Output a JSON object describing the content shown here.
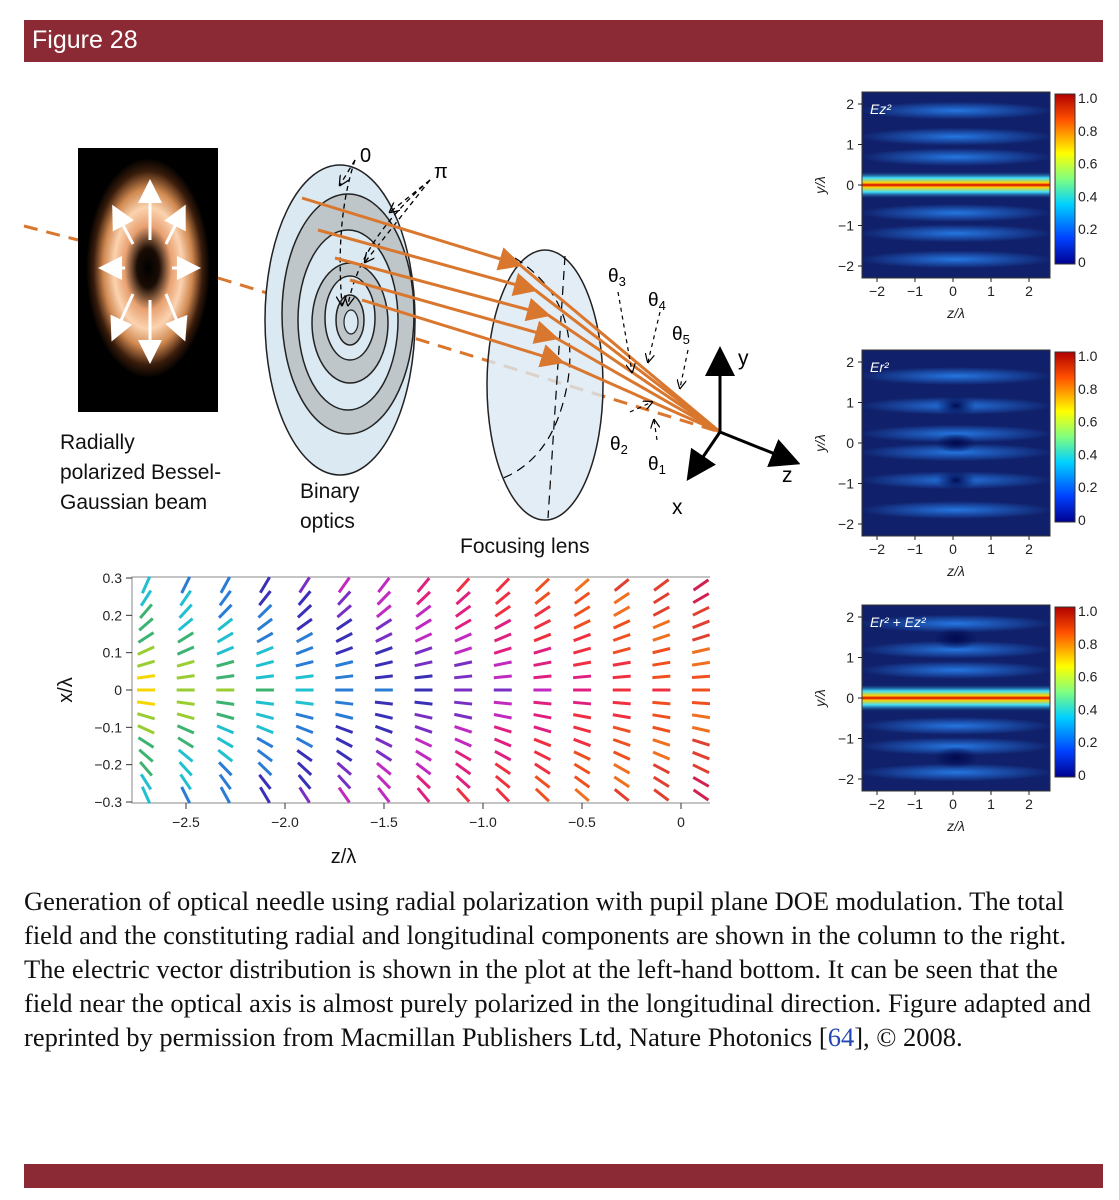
{
  "figure": {
    "title": "Figure 28"
  },
  "diagram": {
    "beam_label_line1": "Radially",
    "beam_label_line2": "polarized Bessel-",
    "beam_label_line3": "Gaussian beam",
    "optics_label_line1": "Binary",
    "optics_label_line2": "optics",
    "lens_label": "Focusing lens",
    "phase_zero": "0",
    "phase_pi": "π",
    "theta1": "θ1",
    "theta2": "θ2",
    "theta3": "θ3",
    "theta4": "θ4",
    "theta5": "θ5",
    "axis_x": "x",
    "axis_y": "y",
    "axis_z": "z"
  },
  "heatmaps": [
    {
      "label": "E_z^2",
      "xlabel": "z/λ",
      "ylabel": "y/λ",
      "xticks": [
        "−2",
        "−1",
        "0",
        "1",
        "2"
      ],
      "yticks": [
        "2",
        "1",
        "0",
        "−1",
        "−2"
      ],
      "cbar_ticks": [
        "1.0",
        "0.8",
        "0.6",
        "0.4",
        "0.2",
        "0"
      ]
    },
    {
      "label": "E_r^2",
      "xlabel": "z/λ",
      "ylabel": "y/λ",
      "xticks": [
        "−2",
        "−1",
        "0",
        "1",
        "2"
      ],
      "yticks": [
        "2",
        "1",
        "0",
        "−1",
        "−2"
      ],
      "cbar_ticks": [
        "1.0",
        "0.8",
        "0.6",
        "0.4",
        "0.2",
        "0"
      ]
    },
    {
      "label": "E_r^2 + E_z^2",
      "xlabel": "z/λ",
      "ylabel": "y/λ",
      "xticks": [
        "−2",
        "−1",
        "0",
        "1",
        "2"
      ],
      "yticks": [
        "2",
        "1",
        "0",
        "−1",
        "−2"
      ],
      "cbar_ticks": [
        "1.0",
        "0.8",
        "0.6",
        "0.4",
        "0.2",
        "0"
      ]
    }
  ],
  "chart_data": {
    "type": "scatter",
    "xlabel": "z/λ",
    "ylabel": "x/λ",
    "xlim": [
      -2.5,
      0
    ],
    "ylim": [
      -0.3,
      0.3
    ],
    "xticks": [
      "−2.5",
      "−2.0",
      "−1.5",
      "−1.0",
      "−0.5",
      "0"
    ],
    "yticks": [
      "0.3",
      "0.2",
      "0.1",
      "0",
      "−0.1",
      "−0.2",
      "−0.3"
    ],
    "grid": false
  },
  "caption": {
    "text": "Generation of optical needle using radial polarization with pupil plane DOE modulation. The total field and the constituting radial and longitudinal components are shown in the column to the right. The electric vector distribution is shown in the plot at the left-hand bottom. It can be seen that the field near the optical axis is almost purely polarized in the longitudinal direction. Figure adapted and reprinted by permission from Macmillan Publishers Ltd, Nature Photonics [",
    "ref": "64",
    "tail": "], © 2008."
  },
  "colors": {
    "header": "#8b2a35",
    "beam": "#d9772e",
    "lens": "#dbe9f2"
  }
}
